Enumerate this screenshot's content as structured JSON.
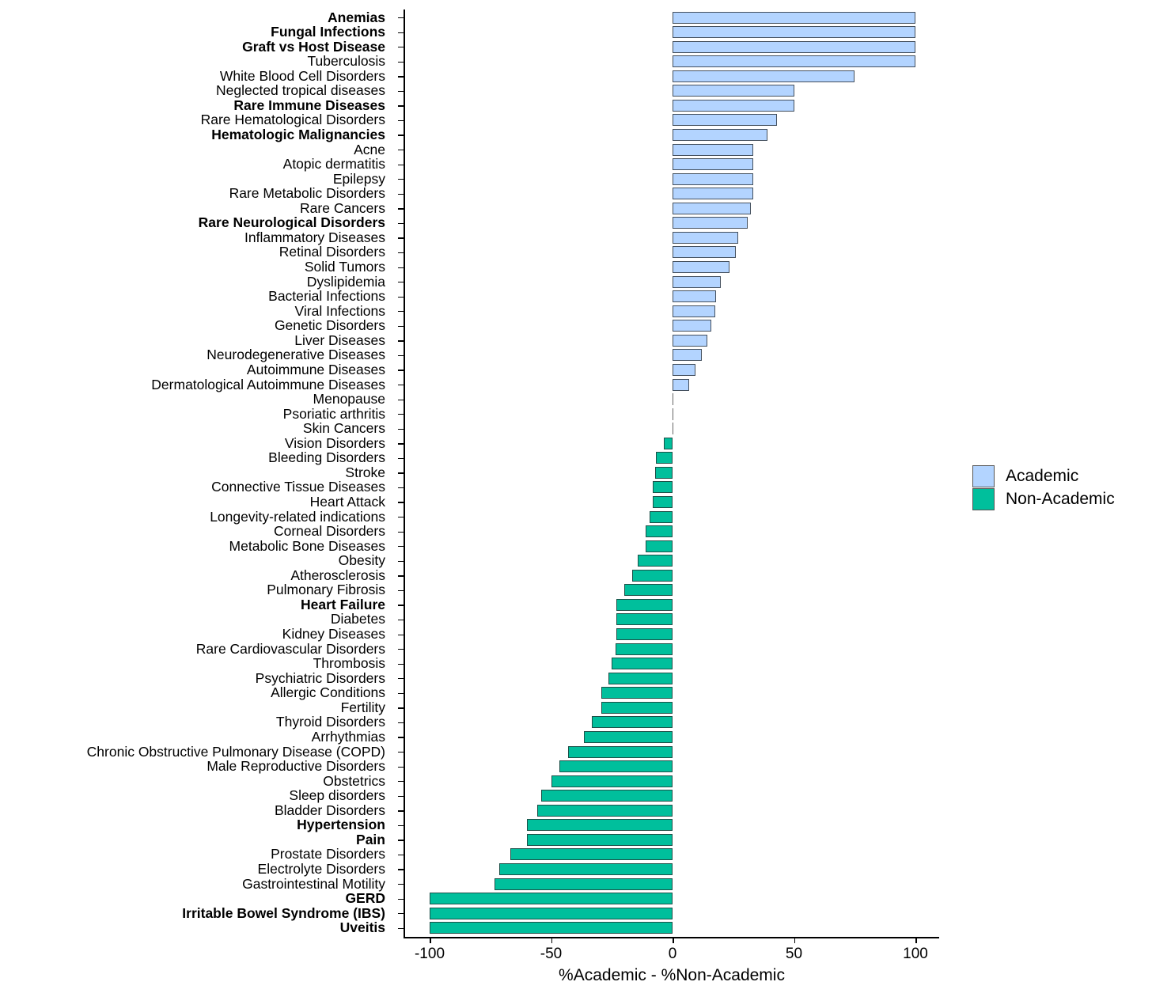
{
  "chart_data": {
    "type": "bar",
    "orientation": "horizontal",
    "title": "",
    "xlabel": "%Academic - %Non-Academic",
    "ylabel": "",
    "xlim": [
      -110,
      110
    ],
    "xticks": [
      -100,
      -50,
      0,
      50,
      100
    ],
    "xtick_labels": [
      "-100",
      "-50",
      "0",
      "50",
      "100"
    ],
    "grid": false,
    "legend_position": "right",
    "legend": [
      {
        "label": "Academic",
        "color": "#b3d4ff"
      },
      {
        "label": "Non-Academic",
        "color": "#00bf9c"
      }
    ],
    "categories": [
      "Anemias",
      "Fungal Infections",
      "Graft vs Host Disease",
      "Tuberculosis",
      "White Blood Cell Disorders",
      "Neglected tropical diseases",
      "Rare Immune Diseases",
      "Rare Hematological Disorders",
      "Hematologic Malignancies",
      "Acne",
      "Atopic dermatitis",
      "Epilepsy",
      "Rare Metabolic Disorders",
      "Rare Cancers",
      "Rare Neurological Disorders",
      "Inflammatory Diseases",
      "Retinal Disorders",
      "Solid Tumors",
      "Dyslipidemia",
      "Bacterial Infections",
      "Viral Infections",
      "Genetic Disorders",
      "Liver Diseases",
      "Neurodegenerative Diseases",
      "Autoimmune Diseases",
      "Dermatological Autoimmune Diseases",
      "Menopause",
      "Psoriatic arthritis",
      "Skin Cancers",
      "Vision Disorders",
      "Bleeding Disorders",
      "Stroke",
      "Connective Tissue Diseases",
      "Heart Attack",
      "Longevity-related indications",
      "Corneal Disorders",
      "Metabolic Bone Diseases",
      "Obesity",
      "Atherosclerosis",
      "Pulmonary Fibrosis",
      "Heart Failure",
      "Diabetes",
      "Kidney Diseases",
      "Rare Cardiovascular Disorders",
      "Thrombosis",
      "Psychiatric Disorders",
      "Allergic Conditions",
      "Fertility",
      "Thyroid Disorders",
      "Arrhythmias",
      "Chronic Obstructive Pulmonary Disease (COPD)",
      "Male Reproductive Disorders",
      "Obstetrics",
      "Sleep disorders",
      "Bladder Disorders",
      "Hypertension",
      "Pain",
      "Prostate Disorders",
      "Electrolyte Disorders",
      "Gastrointestinal Motility",
      "GERD",
      "Irritable Bowel Syndrome (IBS)",
      "Uveitis"
    ],
    "values": [
      100,
      100,
      100,
      100,
      75,
      50,
      50,
      42.9,
      39.1,
      33.3,
      33.3,
      33.3,
      33.3,
      32.1,
      31.0,
      27.0,
      25.9,
      23.5,
      20.0,
      17.9,
      17.6,
      16.0,
      14.3,
      12.2,
      9.4,
      6.7,
      0,
      0,
      0,
      -3.6,
      -6.7,
      -7.1,
      -8.3,
      -8.3,
      -9.5,
      -11.1,
      -11.1,
      -14.3,
      -16.7,
      -20.0,
      -23.0,
      -23.1,
      -23.1,
      -23.5,
      -25.0,
      -26.3,
      -29.4,
      -29.4,
      -33.3,
      -36.4,
      -42.9,
      -46.7,
      -50.0,
      -54.0,
      -55.6,
      -60.0,
      -60.0,
      -66.7,
      -71.4,
      -73.3,
      -100,
      -100,
      -100
    ],
    "bold_categories": [
      "Anemias",
      "Fungal Infections",
      "Graft vs Host Disease",
      "Rare Immune Diseases",
      "Hematologic Malignancies",
      "Rare Neurological Disorders",
      "Heart Failure",
      "Hypertension",
      "Pain",
      "GERD",
      "Irritable Bowel Syndrome (IBS)",
      "Uveitis"
    ],
    "series_rule": "value > 0 → Academic; value < 0 → Non-Academic"
  }
}
